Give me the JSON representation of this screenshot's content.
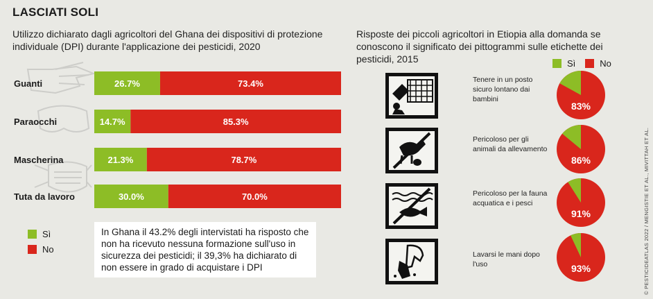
{
  "title": "LASCIATI SOLI",
  "left_subtitle": "Utilizzo dichiarato dagli agricoltori del Ghana dei dispositivi di protezione individuale (DPI) durante l'applicazione dei pesticidi, 2020",
  "right_subtitle": "Risposte dei piccoli agricoltori in Etiopia alla domanda se conoscono il significato dei pittogrammi sulle etichette dei pesticidi, 2015",
  "legend": {
    "yes": "Sì",
    "no": "No"
  },
  "colors": {
    "yes": "#8dbd26",
    "no": "#d9261c",
    "background": "#e9e9e4"
  },
  "note": "In Ghana il 43.2% degli intervistati ha risposto che non ha ricevuto nessuna formazione sull'uso in sicurezza dei pesticidi; il 39,3% ha dichiarato di non essere in grado di acquistare i DPI",
  "pictograms": [
    {
      "icon": "keep-away-from-children-pictogram",
      "label": "Tenere in un posto sicuro lontano dai bambini"
    },
    {
      "icon": "dangerous-to-livestock-pictogram",
      "label": "Pericoloso per gli animali da allevamento"
    },
    {
      "icon": "dangerous-to-fish-pictogram",
      "label": "Pericoloso per la fauna acquatica e i pesci"
    },
    {
      "icon": "wash-hands-pictogram",
      "label": "Lavarsi le mani dopo l'uso"
    }
  ],
  "credit": "© PESTICIDEATLAS 2022 / MENGISTIE ET AL., MIVITTAH ET AL.",
  "chart_data": [
    {
      "type": "bar",
      "orientation": "horizontal",
      "stacked": true,
      "categories": [
        "Guanti",
        "Paraocchi",
        "Mascherina",
        "Tuta da lavoro"
      ],
      "series": [
        {
          "name": "Sì",
          "values": [
            26.7,
            14.7,
            21.3,
            30.0
          ],
          "labels": [
            "26.7%",
            "14.7%",
            "21.3%",
            "30.0%"
          ]
        },
        {
          "name": "No",
          "values": [
            73.4,
            85.3,
            78.7,
            70.0
          ],
          "labels": [
            "73.4%",
            "85.3%",
            "78.7%",
            "70.0%"
          ]
        }
      ]
    },
    {
      "type": "pie",
      "categories": [
        "Tenere in un posto sicuro lontano dai bambini",
        "Pericoloso per gli animali da allevamento",
        "Pericoloso per la fauna acquatica e i pesci",
        "Lavarsi le mani dopo l'uso"
      ],
      "series": [
        {
          "name": "No",
          "values": [
            83,
            86,
            91,
            93
          ],
          "labels": [
            "83%",
            "86%",
            "91%",
            "93%"
          ]
        },
        {
          "name": "Sì",
          "values": [
            17,
            14,
            9,
            7
          ]
        }
      ]
    }
  ]
}
